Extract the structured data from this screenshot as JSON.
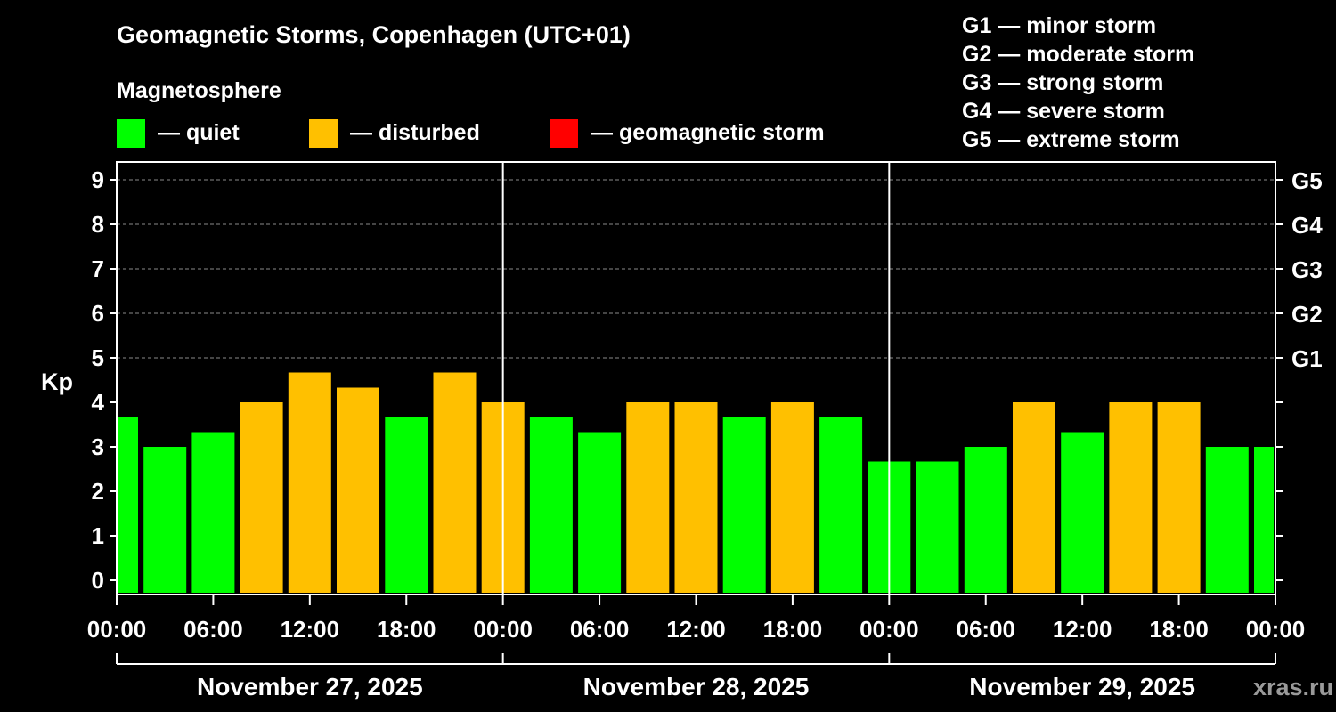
{
  "chart_data": {
    "type": "bar",
    "title": "Geomagnetic Storms, Copenhagen (UTC+01)",
    "legend_title": "Magnetosphere",
    "legend": [
      {
        "key": "quiet",
        "label": "— quiet",
        "color": "#00ff00"
      },
      {
        "key": "disturbed",
        "label": "— disturbed",
        "color": "#ffc000"
      },
      {
        "key": "storm",
        "label": "— geomagnetic storm",
        "color": "#ff0000"
      }
    ],
    "storm_levels": [
      {
        "level": "G1",
        "text": "G1 — minor storm",
        "kp": 5
      },
      {
        "level": "G2",
        "text": "G2 — moderate storm",
        "kp": 6
      },
      {
        "level": "G3",
        "text": "G3 — strong storm",
        "kp": 7
      },
      {
        "level": "G4",
        "text": "G4 — severe storm",
        "kp": 8
      },
      {
        "level": "G5",
        "text": "G5 — extreme storm",
        "kp": 9
      }
    ],
    "ylabel": "Kp",
    "ylim": [
      0,
      9
    ],
    "yticks": [
      "0",
      "1",
      "2",
      "3",
      "4",
      "5",
      "6",
      "7",
      "8",
      "9"
    ],
    "xlim_hours": [
      0,
      72
    ],
    "bar_start_hour": -1.5,
    "bar_interval_hours": 3,
    "xtick_hours": [
      0,
      6,
      12,
      18,
      24,
      30,
      36,
      42,
      48,
      54,
      60,
      66,
      72
    ],
    "xtick_labels": [
      "00:00",
      "06:00",
      "12:00",
      "18:00",
      "00:00",
      "06:00",
      "12:00",
      "18:00",
      "00:00",
      "06:00",
      "12:00",
      "18:00",
      "00:00"
    ],
    "day_separators_hours": [
      24,
      48
    ],
    "dates": [
      "November 27, 2025",
      "November 28, 2025",
      "November 29, 2025"
    ],
    "values": [
      3.67,
      3.0,
      3.33,
      4.0,
      4.67,
      4.33,
      3.67,
      4.67,
      4.0,
      3.67,
      3.33,
      4.0,
      4.0,
      3.67,
      4.0,
      3.67,
      2.67,
      2.67,
      3.0,
      4.0,
      3.33,
      4.0,
      4.0,
      3.0,
      3.0
    ],
    "categories": [
      "quiet",
      "quiet",
      "quiet",
      "disturbed",
      "disturbed",
      "disturbed",
      "quiet",
      "disturbed",
      "disturbed",
      "quiet",
      "quiet",
      "disturbed",
      "disturbed",
      "quiet",
      "disturbed",
      "quiet",
      "quiet",
      "quiet",
      "quiet",
      "disturbed",
      "quiet",
      "disturbed",
      "disturbed",
      "quiet",
      "quiet"
    ],
    "grid": true
  },
  "watermark": "xras.ru"
}
